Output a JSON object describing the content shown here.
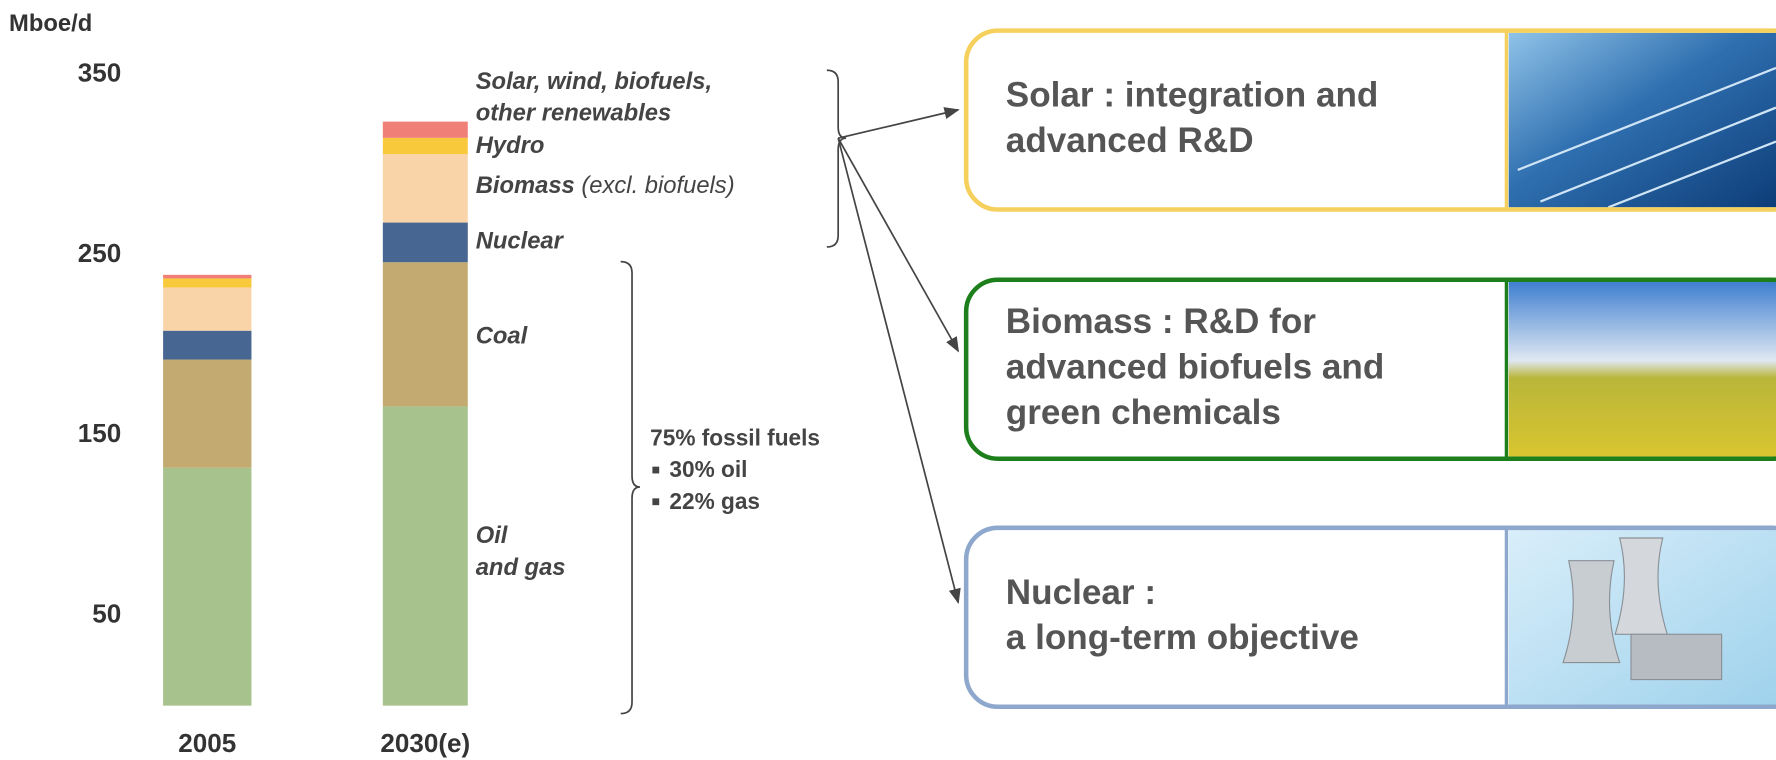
{
  "chart_data": {
    "type": "stacked_bar",
    "unit_label": "Mboe/d",
    "categories": [
      "2005",
      "2030(e)"
    ],
    "ylim": [
      0,
      350
    ],
    "yticks": [
      50,
      150,
      250,
      350
    ],
    "series": [
      {
        "name": [
          "Oil",
          "and gas"
        ],
        "color": "#a7c28d",
        "values": [
          132,
          166
        ]
      },
      {
        "name": "Coal",
        "color": "#c2aa70",
        "values": [
          60,
          80
        ]
      },
      {
        "name": "Nuclear",
        "color": "#476691",
        "values": [
          16,
          22
        ]
      },
      {
        "name": "Biomass",
        "note": "(excl. biofuels)",
        "color": "#fad4a9",
        "values": [
          24,
          38
        ]
      },
      {
        "name": "Hydro",
        "color": "#f8c93b",
        "values": [
          5,
          9
        ]
      },
      {
        "name": [
          "Solar, wind, biofuels,",
          "other renewables"
        ],
        "color": "#f07f77",
        "values": [
          2,
          9
        ]
      }
    ],
    "fossil_note": {
      "title": "75% fossil fuels",
      "items": [
        "30% oil",
        "22% gas"
      ]
    }
  },
  "cards": [
    {
      "lines": [
        "Solar : integration and",
        "advanced R&D"
      ],
      "color": "#f6d05c"
    },
    {
      "lines": [
        "Biomass : R&D for",
        "advanced biofuels and",
        "green chemicals"
      ],
      "color": "#1c7f1c"
    },
    {
      "lines": [
        "Nuclear :",
        "a long-term objective"
      ],
      "color": "#8ea8cd"
    }
  ]
}
